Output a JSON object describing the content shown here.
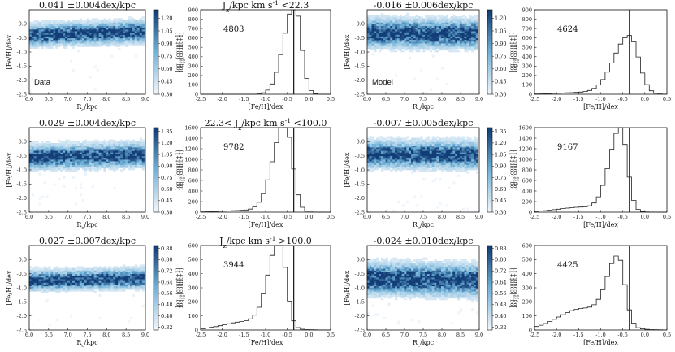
{
  "colors": {
    "hex_light": "#deebf7",
    "hex_dark": "#08306b",
    "hist": "#222222",
    "median": "#111111"
  },
  "labels": {
    "rc": "R_c/kpc",
    "feh": "[Fe/H]/dex",
    "cbar": "log10(count+1)",
    "row_titles": [
      "J_z/kpc km s^-1 <22.3",
      "22.3< J_z/kpc km s^-1 <100.0",
      "J_z/kpc km s^-1 >100.0"
    ],
    "data_tag": "Data",
    "model_tag": "Model"
  },
  "chart_data": [
    {
      "type": "heatmap",
      "panel": "data",
      "row": 0,
      "title": "0.041 ±0.004dex/kpc",
      "tag": "Data",
      "xlabel": "R_c/kpc",
      "ylabel": "[Fe/H]/dex",
      "xlim": [
        6.0,
        9.0
      ],
      "ylim": [
        -2.5,
        0.5
      ],
      "xticks": [
        "6.0",
        "6.5",
        "7.0",
        "7.5",
        "8.0",
        "8.5",
        "9.0"
      ],
      "yticks": [
        "0.0",
        "-0.5",
        "-1.0",
        "-1.5",
        "-2.0",
        "-2.5"
      ],
      "slope": 0.041,
      "center": -0.33,
      "spread": 0.2,
      "colorbar": {
        "label": "log10(count+1)",
        "ticks": [
          "1.20",
          "1.05",
          "0.90",
          "0.75",
          "0.60",
          "0.45",
          "0.30"
        ],
        "range": [
          0.3,
          1.3
        ]
      }
    },
    {
      "type": "histogram",
      "panel": "data",
      "row": 0,
      "title": "J_z/kpc km s^-1 <22.3",
      "count_label": "4803",
      "xlabel": "[Fe/H]/dex",
      "xlim": [
        -2.5,
        0.5
      ],
      "ylim": [
        0,
        900
      ],
      "xticks": [
        "-2.5",
        "-2.0",
        "-1.5",
        "-1.0",
        "-0.5",
        "0.0",
        "0.5"
      ],
      "yticks": [
        "0",
        "100",
        "200",
        "300",
        "400",
        "500",
        "600",
        "700",
        "800",
        "900"
      ],
      "vline": -0.35,
      "total": 4803,
      "center": -0.33,
      "spread": 0.2,
      "tail": 0.0
    },
    {
      "type": "heatmap",
      "panel": "model",
      "row": 0,
      "title": "-0.016 ±0.006dex/kpc",
      "tag": "Model",
      "xlabel": "R_c/kpc",
      "ylabel": "[Fe/H]/dex",
      "xlim": [
        6.0,
        9.0
      ],
      "ylim": [
        -2.5,
        0.5
      ],
      "xticks": [
        "6.0",
        "6.5",
        "7.0",
        "7.5",
        "8.0",
        "8.5",
        "9.0"
      ],
      "yticks": [
        "0.0",
        "-0.5",
        "-1.0",
        "-1.5",
        "-2.0",
        "-2.5"
      ],
      "slope": -0.016,
      "center": -0.33,
      "spread": 0.27,
      "colorbar": {
        "label": "log10(count+1)",
        "ticks": [
          "1.20",
          "1.05",
          "0.90",
          "0.75",
          "0.60",
          "0.45",
          "0.30"
        ],
        "range": [
          0.3,
          1.3
        ]
      }
    },
    {
      "type": "histogram",
      "panel": "model",
      "row": 0,
      "title": "",
      "count_label": "4624",
      "xlabel": "[Fe/H]/dex",
      "xlim": [
        -2.5,
        0.5
      ],
      "ylim": [
        0,
        900
      ],
      "xticks": [
        "-2.5",
        "-2.0",
        "-1.5",
        "-1.0",
        "-0.5",
        "0.0",
        "0.5"
      ],
      "yticks": [
        "0",
        "100",
        "200",
        "300",
        "400",
        "500",
        "600",
        "700",
        "800",
        "900"
      ],
      "vline": -0.35,
      "total": 4624,
      "center": -0.35,
      "spread": 0.28,
      "tail": 0.03
    },
    {
      "type": "heatmap",
      "panel": "data",
      "row": 1,
      "title": "0.029 ±0.004dex/kpc",
      "tag": "",
      "xlabel": "R_c/kpc",
      "ylabel": "[Fe/H]/dex",
      "xlim": [
        6.0,
        9.0
      ],
      "ylim": [
        -2.5,
        0.5
      ],
      "xticks": [
        "6.0",
        "6.5",
        "7.0",
        "7.5",
        "8.0",
        "8.5",
        "9.0"
      ],
      "yticks": [
        "0.0",
        "-0.5",
        "-1.0",
        "-1.5",
        "-2.0",
        "-2.5"
      ],
      "slope": 0.029,
      "center": -0.5,
      "spread": 0.22,
      "colorbar": {
        "label": "log10(count+1)",
        "ticks": [
          "1.35",
          "1.20",
          "1.05",
          "0.90",
          "0.75",
          "0.60",
          "0.45",
          "0.30"
        ],
        "range": [
          0.3,
          1.4
        ]
      }
    },
    {
      "type": "histogram",
      "panel": "data",
      "row": 1,
      "title": "22.3< J_z/kpc km s^-1 <100.0",
      "count_label": "9782",
      "xlabel": "[Fe/H]/dex",
      "xlim": [
        -2.5,
        0.5
      ],
      "ylim": [
        0,
        1600
      ],
      "xticks": [
        "-2.5",
        "-2.0",
        "-1.5",
        "-1.0",
        "-0.5",
        "0.0",
        "0.5"
      ],
      "yticks": [
        "0",
        "200",
        "400",
        "600",
        "800",
        "1000",
        "1200",
        "1400",
        "1600"
      ],
      "vline": -0.35,
      "total": 9782,
      "center": -0.55,
      "spread": 0.22,
      "tail": 0.02
    },
    {
      "type": "heatmap",
      "panel": "model",
      "row": 1,
      "title": "-0.007 ±0.005dex/kpc",
      "tag": "",
      "xlabel": "R_c/kpc",
      "ylabel": "[Fe/H]/dex",
      "xlim": [
        6.0,
        9.0
      ],
      "ylim": [
        -2.5,
        0.5
      ],
      "xticks": [
        "6.0",
        "6.5",
        "7.0",
        "7.5",
        "8.0",
        "8.5",
        "9.0"
      ],
      "yticks": [
        "0.0",
        "-0.5",
        "-1.0",
        "-1.5",
        "-2.0",
        "-2.5"
      ],
      "slope": -0.007,
      "center": -0.45,
      "spread": 0.25,
      "colorbar": {
        "label": "log10(count+1)",
        "ticks": [
          "1.35",
          "1.20",
          "1.05",
          "0.90",
          "0.75",
          "0.60",
          "0.45",
          "0.30"
        ],
        "range": [
          0.3,
          1.4
        ]
      }
    },
    {
      "type": "histogram",
      "panel": "model",
      "row": 1,
      "title": "",
      "count_label": "9167",
      "xlabel": "[Fe/H]/dex",
      "xlim": [
        -2.5,
        0.5
      ],
      "ylim": [
        0,
        1600
      ],
      "xticks": [
        "-2.5",
        "-2.0",
        "-1.5",
        "-1.0",
        "-0.5",
        "0.0",
        "0.5"
      ],
      "yticks": [
        "0",
        "200",
        "400",
        "600",
        "800",
        "1000",
        "1200",
        "1400",
        "1600"
      ],
      "vline": -0.35,
      "total": 9167,
      "center": -0.55,
      "spread": 0.2,
      "tail": 0.06
    },
    {
      "type": "heatmap",
      "panel": "data",
      "row": 2,
      "title": "0.027 ±0.007dex/kpc",
      "tag": "",
      "xlabel": "R_c/kpc",
      "ylabel": "[Fe/H]/dex",
      "xlim": [
        6.0,
        9.0
      ],
      "ylim": [
        -2.5,
        0.5
      ],
      "xticks": [
        "6.0",
        "6.5",
        "7.0",
        "7.5",
        "8.0",
        "8.5",
        "9.0"
      ],
      "yticks": [
        "0.0",
        "-0.5",
        "-1.0",
        "-1.5",
        "-2.0",
        "-2.5"
      ],
      "slope": 0.027,
      "center": -0.7,
      "spread": 0.18,
      "colorbar": {
        "label": "log10(count+1)",
        "ticks": [
          "0.88",
          "0.80",
          "0.72",
          "0.64",
          "0.56",
          "0.48",
          "0.40",
          "0.32"
        ],
        "range": [
          0.3,
          0.9
        ]
      }
    },
    {
      "type": "histogram",
      "panel": "data",
      "row": 2,
      "title": "J_z/kpc km s^-1 >100.0",
      "count_label": "3944",
      "xlabel": "[Fe/H]/dex",
      "xlim": [
        -2.5,
        0.5
      ],
      "ylim": [
        0,
        600
      ],
      "xticks": [
        "-2.5",
        "-2.0",
        "-1.5",
        "-1.0",
        "-0.5",
        "0.0",
        "0.5"
      ],
      "yticks": [
        "0",
        "100",
        "200",
        "300",
        "400",
        "500",
        "600"
      ],
      "vline": -0.35,
      "total": 3944,
      "center": -0.68,
      "spread": 0.2,
      "tail": 0.1
    },
    {
      "type": "heatmap",
      "panel": "model",
      "row": 2,
      "title": "-0.024 ±0.010dex/kpc",
      "tag": "",
      "xlabel": "R_c/kpc",
      "ylabel": "[Fe/H]/dex",
      "xlim": [
        6.0,
        9.0
      ],
      "ylim": [
        -2.5,
        0.5
      ],
      "xticks": [
        "6.0",
        "6.5",
        "7.0",
        "7.5",
        "8.0",
        "8.5",
        "9.0"
      ],
      "yticks": [
        "0.0",
        "-0.5",
        "-1.0",
        "-1.5",
        "-2.0",
        "-2.5"
      ],
      "slope": -0.024,
      "center": -0.7,
      "spread": 0.3,
      "colorbar": {
        "label": "log10(count+1)",
        "ticks": [
          "0.88",
          "0.80",
          "0.72",
          "0.64",
          "0.56",
          "0.48",
          "0.40",
          "0.32"
        ],
        "range": [
          0.3,
          0.9
        ]
      }
    },
    {
      "type": "histogram",
      "panel": "model",
      "row": 2,
      "title": "",
      "count_label": "4425",
      "xlabel": "[Fe/H]/dex",
      "xlim": [
        -2.5,
        0.5
      ],
      "ylim": [
        0,
        600
      ],
      "xticks": [
        "-2.5",
        "-2.0",
        "-1.5",
        "-1.0",
        "-0.5",
        "0.0",
        "0.5"
      ],
      "yticks": [
        "0",
        "100",
        "200",
        "300",
        "400",
        "500",
        "600"
      ],
      "vline": -0.35,
      "total": 4425,
      "center": -0.6,
      "spread": 0.2,
      "tail": 0.32
    }
  ]
}
